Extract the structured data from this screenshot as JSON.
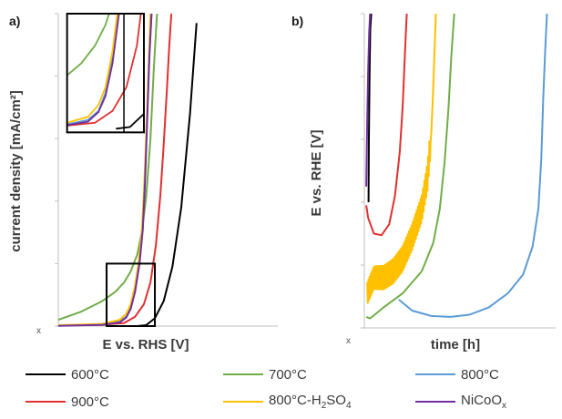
{
  "figure": {
    "panels": [
      {
        "label": "a)",
        "xlabel": "E vs. RHS [V]",
        "ylabel": "current density [mA/cm²]",
        "x_tick_label": "x"
      },
      {
        "label": "b)",
        "xlabel": "time [h]",
        "ylabel": "E vs. RHE [V]",
        "x_tick_label": "x"
      }
    ],
    "legend": [
      {
        "label": "600°C",
        "color": "#000000"
      },
      {
        "label": "700°C",
        "color": "#70ad47"
      },
      {
        "label": "800°C",
        "color": "#5b9bd5"
      },
      {
        "label": "900°C",
        "color": "#e03030"
      },
      {
        "label": "800°C-H2SO4",
        "label_main": "800°C-H",
        "label_sub": "2",
        "label_tail": "SO",
        "label_sub2": "4",
        "color": "#ffc000"
      },
      {
        "label": "NiCoOx",
        "label_main": "NiCoO",
        "label_sub": "x",
        "color": "#7030a0"
      }
    ]
  },
  "chart_data": [
    {
      "type": "line",
      "panel": "a)",
      "xlabel": "E vs. RHS [V]",
      "ylabel": "current density [mA/cm²]",
      "xlim": [
        0,
        10
      ],
      "ylim": [
        0,
        10
      ],
      "yticks": [
        0,
        2,
        4,
        6,
        8,
        10
      ],
      "grid": false,
      "zoom_box": {
        "x": [
          2.2,
          4.4
        ],
        "y": [
          0,
          2
        ]
      },
      "inset_box": {
        "x": [
          0.4,
          3.9
        ],
        "y": [
          6.2,
          10
        ]
      },
      "series": [
        {
          "name": "600°C",
          "color": "#000000",
          "x": [
            3.6,
            4.0,
            4.4,
            4.8,
            5.2,
            5.6,
            6.0,
            6.3
          ],
          "y": [
            0.0,
            0.03,
            0.25,
            0.8,
            1.9,
            3.8,
            6.8,
            9.7
          ]
        },
        {
          "name": "700°C",
          "color": "#70ad47",
          "x": [
            0.0,
            1.0,
            2.0,
            2.6,
            3.0,
            3.3,
            3.6,
            3.8,
            4.0,
            4.2,
            4.35,
            4.5
          ],
          "y": [
            0.2,
            0.45,
            0.8,
            1.1,
            1.4,
            1.75,
            2.3,
            3.0,
            4.1,
            6.0,
            8.2,
            10.0
          ]
        },
        {
          "name": "800°C",
          "color": "#5b9bd5",
          "x": [
            0.0,
            2.0,
            2.8,
            3.1,
            3.3,
            3.5,
            3.7,
            3.85,
            3.95,
            4.05,
            4.15,
            4.25
          ],
          "y": [
            0.02,
            0.05,
            0.15,
            0.3,
            0.6,
            1.2,
            2.1,
            3.2,
            4.8,
            6.8,
            8.8,
            10.0
          ]
        },
        {
          "name": "900°C",
          "color": "#e03030",
          "x": [
            0.0,
            2.0,
            3.0,
            3.5,
            3.9,
            4.2,
            4.45,
            4.65,
            4.8,
            4.95,
            5.05,
            5.15
          ],
          "y": [
            0.02,
            0.04,
            0.1,
            0.3,
            0.7,
            1.4,
            2.6,
            4.2,
            5.8,
            7.6,
            8.9,
            10.0
          ]
        },
        {
          "name": "800°C-H2SO4",
          "color": "#ffc000",
          "x": [
            0.0,
            2.0,
            2.8,
            3.1,
            3.3,
            3.5,
            3.65,
            3.8,
            3.9,
            4.0,
            4.1,
            4.2
          ],
          "y": [
            0.03,
            0.07,
            0.2,
            0.4,
            0.7,
            1.3,
            2.0,
            3.0,
            4.3,
            6.0,
            8.0,
            10.0
          ]
        },
        {
          "name": "NiCoOx",
          "color": "#7030a0",
          "x": [
            0.0,
            2.0,
            2.8,
            3.1,
            3.3,
            3.5,
            3.7,
            3.85,
            3.95,
            4.05,
            4.15,
            4.25
          ],
          "y": [
            0.01,
            0.04,
            0.12,
            0.28,
            0.55,
            1.1,
            2.0,
            3.1,
            4.6,
            6.6,
            8.6,
            10.0
          ]
        }
      ]
    },
    {
      "type": "line",
      "panel": "b)",
      "xlabel": "time [h]",
      "ylabel": "E vs. RHE [V]",
      "xlim": [
        0,
        10
      ],
      "ylim": [
        0,
        10
      ],
      "yticks": [
        0,
        2,
        4,
        6,
        8,
        10
      ],
      "grid": false,
      "series": [
        {
          "name": "600°C",
          "color": "#000000",
          "x": [
            0.22,
            0.24,
            0.27,
            0.31,
            0.36
          ],
          "y": [
            4.0,
            6.0,
            8.0,
            9.5,
            10.0
          ]
        },
        {
          "name": "700°C",
          "color": "#70ad47",
          "x": [
            0.1,
            0.3,
            1.0,
            2.0,
            3.0,
            3.6,
            3.95,
            4.2,
            4.4,
            4.55,
            4.7
          ],
          "y": [
            0.35,
            0.3,
            0.65,
            1.1,
            1.8,
            2.7,
            3.8,
            5.3,
            7.0,
            8.7,
            10.0
          ]
        },
        {
          "name": "800°C",
          "color": "#5b9bd5",
          "x": [
            1.8,
            2.5,
            3.5,
            4.5,
            5.5,
            6.5,
            7.5,
            8.3,
            8.8,
            9.1,
            9.25,
            9.35,
            9.45,
            9.55
          ],
          "y": [
            0.9,
            0.55,
            0.38,
            0.35,
            0.42,
            0.65,
            1.1,
            1.7,
            2.6,
            3.8,
            5.4,
            7.3,
            8.8,
            10.0
          ]
        },
        {
          "name": "900°C",
          "color": "#e03030",
          "x": [
            0.1,
            0.2,
            0.5,
            0.9,
            1.3,
            1.6,
            1.85,
            2.0,
            2.1,
            2.17,
            2.22
          ],
          "y": [
            3.9,
            3.5,
            3.0,
            2.95,
            3.3,
            4.2,
            5.6,
            7.0,
            8.4,
            9.4,
            10.0
          ]
        },
        {
          "name": "800°C-H2SO4",
          "color": "#ffc000",
          "x": [
            0.15,
            0.5,
            1.0,
            1.5,
            2.0,
            2.5,
            3.0,
            3.3,
            3.5,
            3.6,
            3.68,
            3.74
          ],
          "y": [
            1.1,
            1.6,
            1.6,
            1.8,
            2.2,
            2.9,
            3.8,
            4.8,
            6.2,
            7.6,
            9.0,
            10.0
          ]
        },
        {
          "name": "NiCoOx",
          "color": "#7030a0",
          "x": [
            0.1,
            0.15,
            0.2,
            0.25,
            0.3
          ],
          "y": [
            4.5,
            6.5,
            8.2,
            9.4,
            10.0
          ]
        }
      ]
    }
  ]
}
